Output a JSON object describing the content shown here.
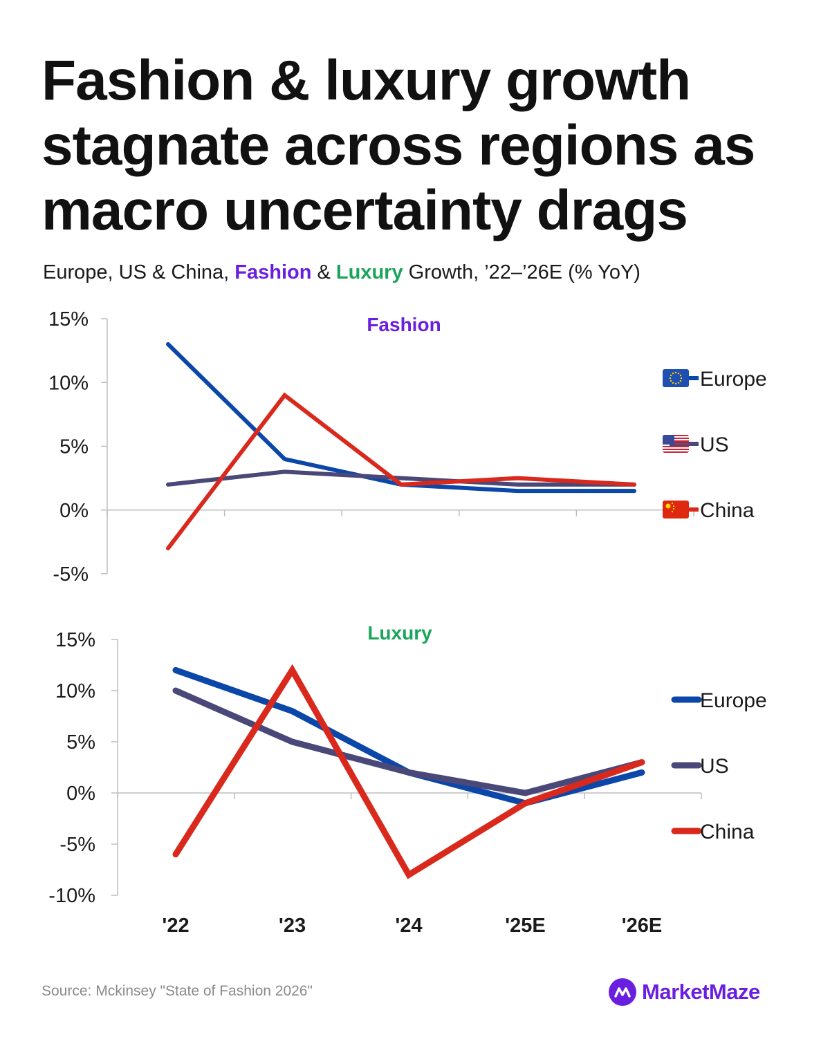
{
  "title": "Fashion & luxury growth stagnate across regions as macro uncertainty drags",
  "subtitle": {
    "prefix": "Europe, US & China, ",
    "fashion": "Fashion",
    "middle": " & ",
    "luxury": "Luxury",
    "suffix": " Growth, ’22–’26E (% YoY)"
  },
  "source": "Source: Mckinsey \"State of Fashion 2026\"",
  "brand": "MarketMaze",
  "colors": {
    "europe": "#0a47a9",
    "us": "#4a4878",
    "china": "#d9291c",
    "fashion_title": "#6a1fe0",
    "luxury_title": "#1aa55a",
    "brand": "#6a1fe0"
  },
  "chart_data": [
    {
      "type": "line",
      "title": "Fashion",
      "categories": [
        "'22",
        "'23",
        "'24",
        "'25E",
        "'26E"
      ],
      "ylim": [
        -5,
        15
      ],
      "yticks": [
        15,
        10,
        5,
        0,
        -5
      ],
      "ytick_labels": [
        "15%",
        "10%",
        "5%",
        "0%",
        "-5%"
      ],
      "series": [
        {
          "name": "Europe",
          "values": [
            13,
            4,
            2,
            1.5,
            1.5
          ]
        },
        {
          "name": "US",
          "values": [
            2,
            3,
            2.5,
            2,
            2
          ]
        },
        {
          "name": "China",
          "values": [
            -3,
            9,
            2,
            2.5,
            2
          ]
        }
      ],
      "legend": [
        "Europe",
        "US",
        "China"
      ],
      "legend_icons": [
        "eu-flag-icon",
        "us-flag-icon",
        "china-flag-icon"
      ]
    },
    {
      "type": "line",
      "title": "Luxury",
      "categories": [
        "'22",
        "'23",
        "'24",
        "'25E",
        "'26E"
      ],
      "ylim": [
        -10,
        15
      ],
      "yticks": [
        15,
        10,
        5,
        0,
        -5,
        -10
      ],
      "ytick_labels": [
        "15%",
        "10%",
        "5%",
        "0%",
        "-5%",
        "-10%"
      ],
      "series": [
        {
          "name": "Europe",
          "values": [
            12,
            8,
            2,
            -1,
            2
          ]
        },
        {
          "name": "US",
          "values": [
            10,
            5,
            2,
            0,
            3
          ]
        },
        {
          "name": "China",
          "values": [
            -6,
            12,
            -8,
            -1,
            3
          ]
        }
      ],
      "legend": [
        "Europe",
        "US",
        "China"
      ],
      "x_labels": [
        "'22",
        "'23",
        "'24",
        "'25E",
        "'26E"
      ]
    }
  ]
}
